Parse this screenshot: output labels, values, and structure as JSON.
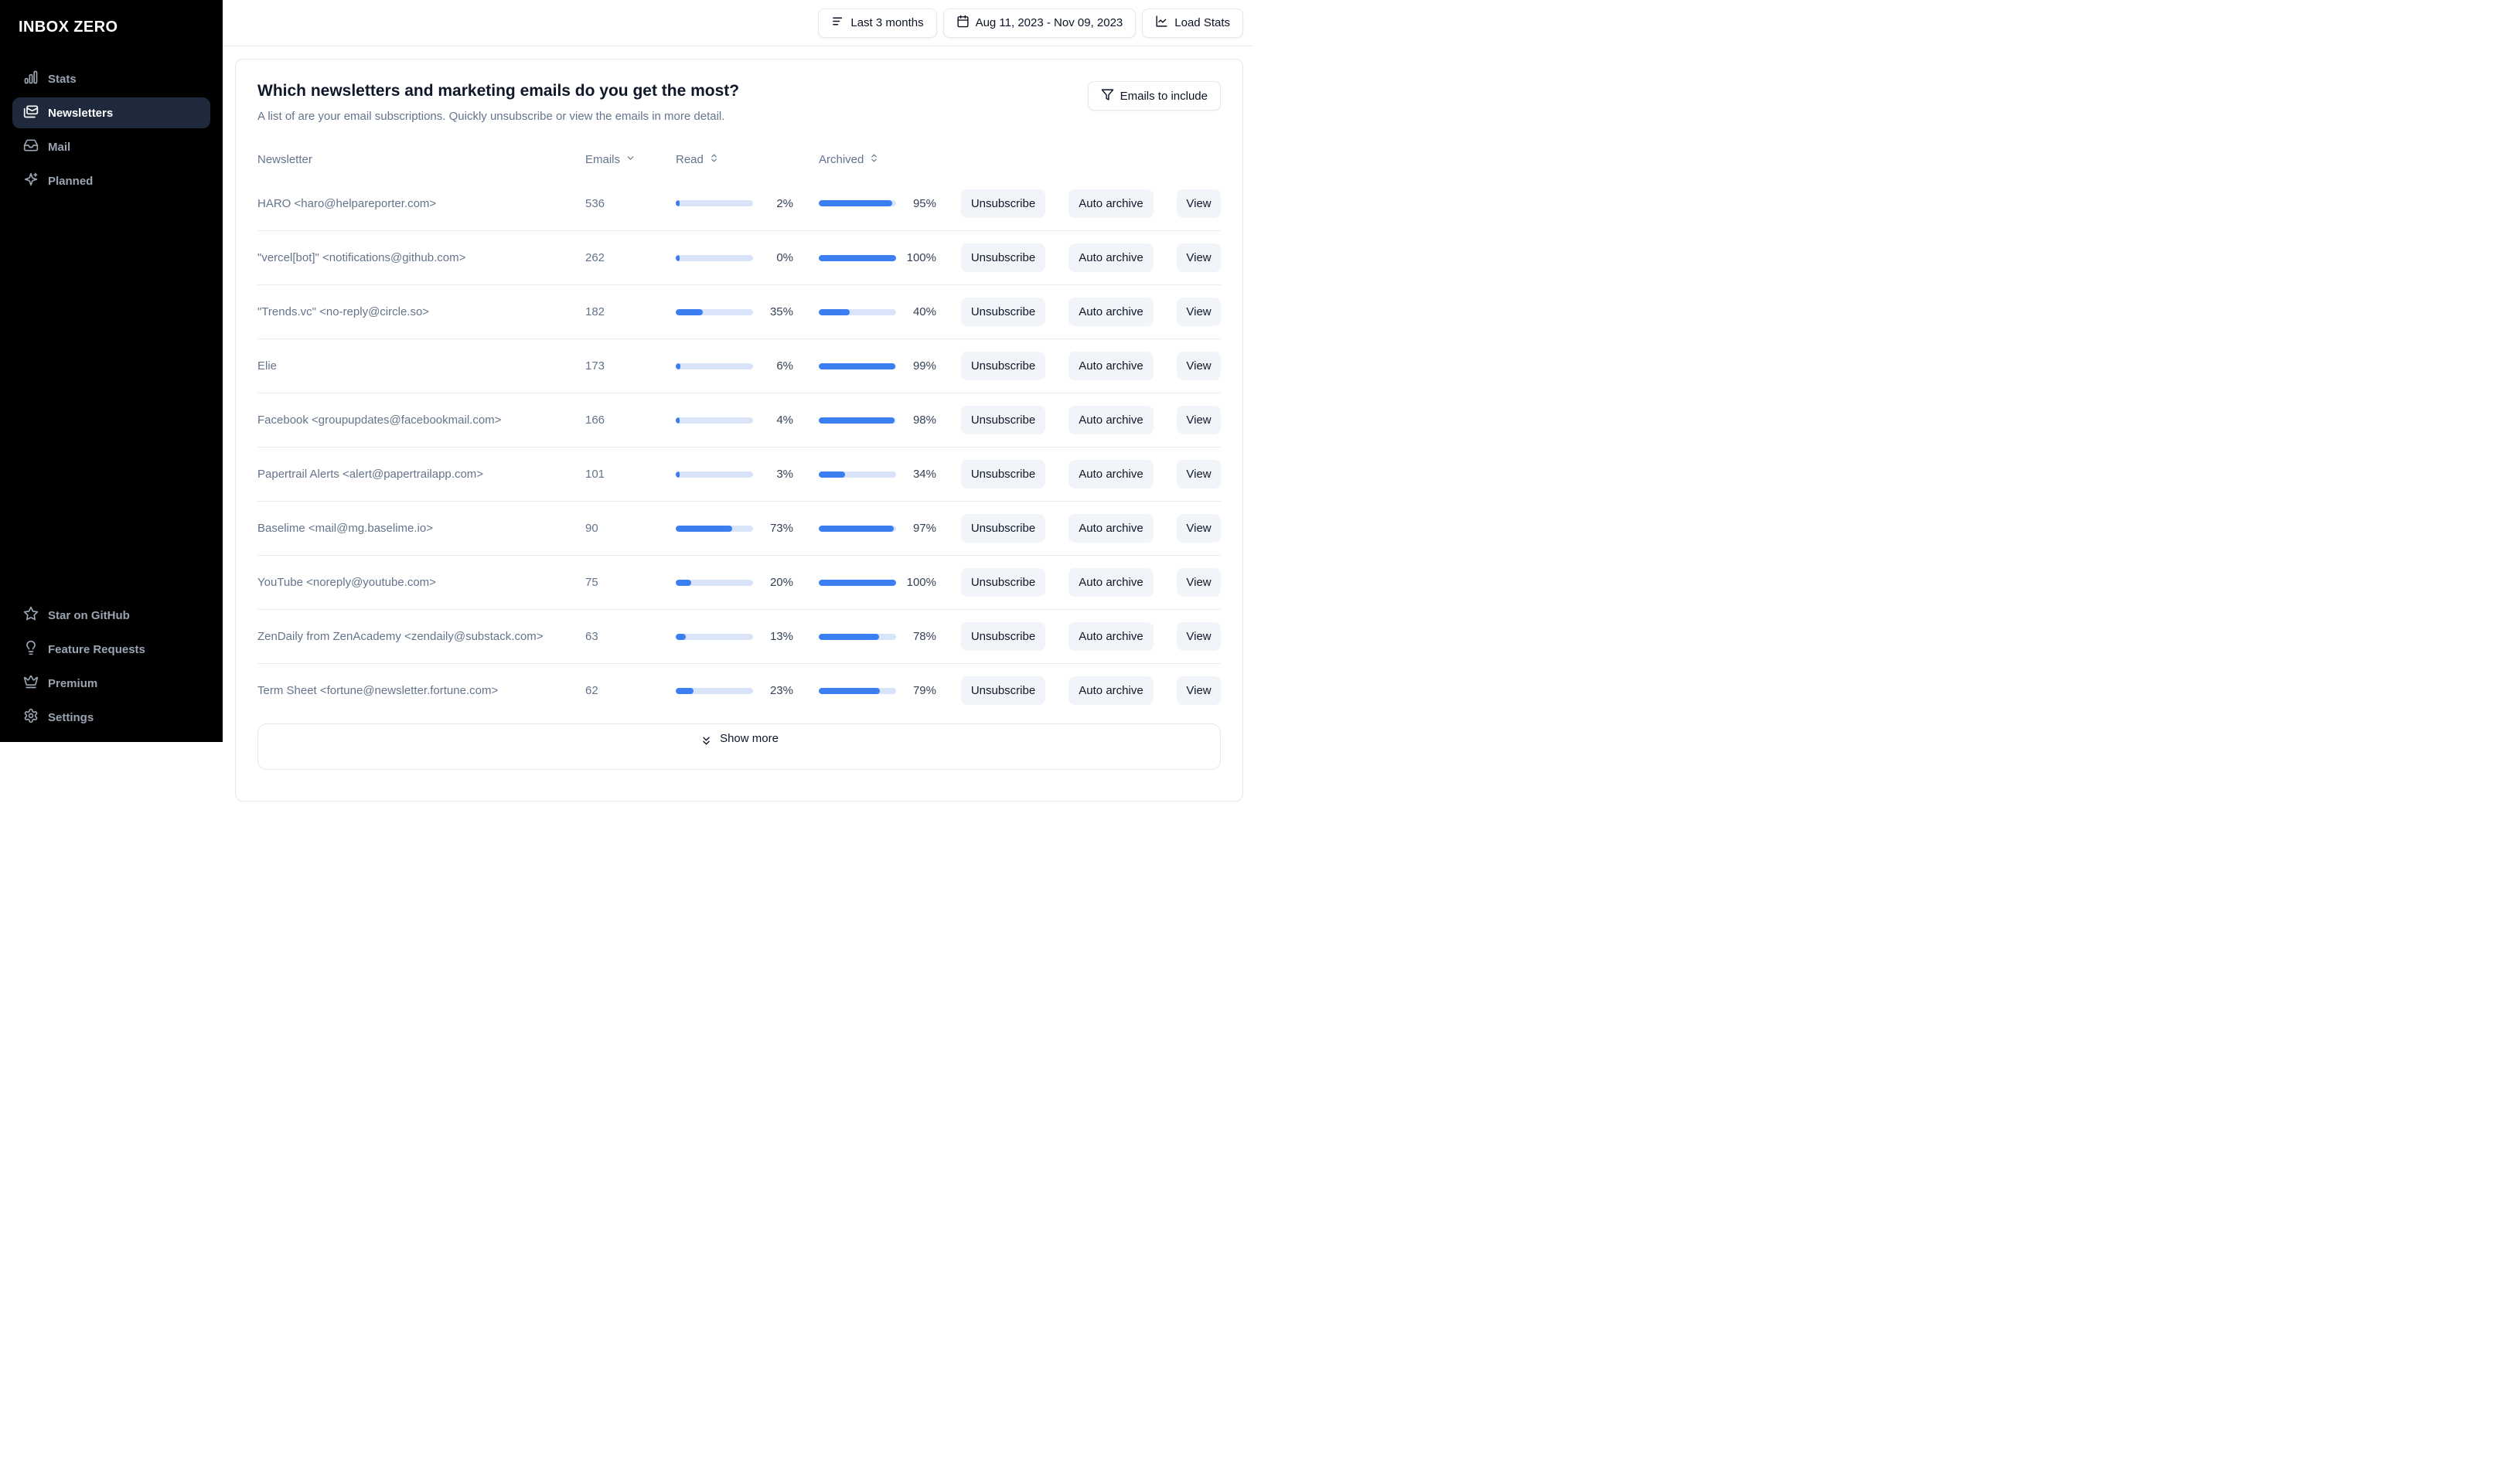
{
  "sidebar": {
    "logo": "INBOX ZERO",
    "nav": [
      {
        "label": "Stats",
        "icon": "bar-chart-icon"
      },
      {
        "label": "Newsletters",
        "icon": "newsletter-mail-icon"
      },
      {
        "label": "Mail",
        "icon": "inbox-icon"
      },
      {
        "label": "Planned",
        "icon": "sparkles-icon"
      }
    ],
    "footer_nav": [
      {
        "label": "Star on GitHub",
        "icon": "star-icon"
      },
      {
        "label": "Feature Requests",
        "icon": "lightbulb-icon"
      },
      {
        "label": "Premium",
        "icon": "crown-icon"
      },
      {
        "label": "Settings",
        "icon": "gear-icon"
      }
    ]
  },
  "topbar": {
    "period_button": "Last 3 months",
    "date_range_button": "Aug 11, 2023 - Nov 09, 2023",
    "load_stats_button": "Load Stats"
  },
  "panel": {
    "title": "Which newsletters and marketing emails do you get the most?",
    "subtitle": "A list of are your email subscriptions. Quickly unsubscribe or view the emails in more detail.",
    "filter_button": "Emails to include",
    "columns": {
      "newsletter": "Newsletter",
      "emails": "Emails",
      "read": "Read",
      "archived": "Archived"
    },
    "actions": {
      "unsubscribe": "Unsubscribe",
      "auto_archive": "Auto archive",
      "view": "View"
    },
    "show_more_button": "Show more",
    "rows": [
      {
        "name": "HARO <haro@helpareporter.com>",
        "emails": "536",
        "read_pct": 2,
        "archived_pct": 95
      },
      {
        "name": "\"vercel[bot]\" <notifications@github.com>",
        "emails": "262",
        "read_pct": 0,
        "archived_pct": 100
      },
      {
        "name": "\"Trends.vc\" <no-reply@circle.so>",
        "emails": "182",
        "read_pct": 35,
        "archived_pct": 40
      },
      {
        "name": "Elie",
        "emails": "173",
        "read_pct": 6,
        "archived_pct": 99
      },
      {
        "name": "Facebook <groupupdates@facebookmail.com>",
        "emails": "166",
        "read_pct": 4,
        "archived_pct": 98
      },
      {
        "name": "Papertrail Alerts <alert@papertrailapp.com>",
        "emails": "101",
        "read_pct": 3,
        "archived_pct": 34
      },
      {
        "name": "Baselime <mail@mg.baselime.io>",
        "emails": "90",
        "read_pct": 73,
        "archived_pct": 97
      },
      {
        "name": "YouTube <noreply@youtube.com>",
        "emails": "75",
        "read_pct": 20,
        "archived_pct": 100
      },
      {
        "name": "ZenDaily from ZenAcademy <zendaily@substack.com>",
        "emails": "63",
        "read_pct": 13,
        "archived_pct": 78
      },
      {
        "name": "Term Sheet <fortune@newsletter.fortune.com>",
        "emails": "62",
        "read_pct": 23,
        "archived_pct": 79
      }
    ]
  },
  "colors": {
    "accent_blue": "#3b7ef2",
    "bar_track": "#d9e4f8",
    "sidebar_bg": "#000000",
    "active_nav_bg": "#1e293b",
    "border": "#e2e8f0"
  }
}
